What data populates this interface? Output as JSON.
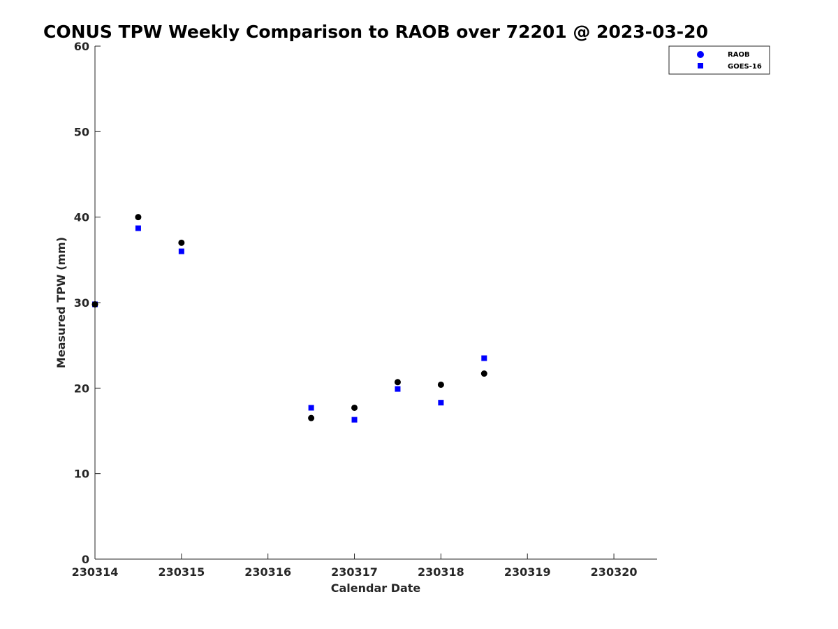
{
  "chart_data": {
    "type": "scatter",
    "title": "CONUS TPW Weekly Comparison to RAOB over 72201 @ 2023-03-20",
    "xlabel": "Calendar Date",
    "ylabel": "Measured TPW (mm)",
    "xlim": [
      230314,
      230320.5
    ],
    "ylim": [
      0,
      60
    ],
    "x_ticks": [
      230314,
      230315,
      230316,
      230317,
      230318,
      230319,
      230320
    ],
    "x_tick_labels": [
      "230314",
      "230315",
      "230316",
      "230317",
      "230318",
      "230319",
      "230320"
    ],
    "y_ticks": [
      0,
      10,
      20,
      30,
      40,
      50,
      60
    ],
    "y_tick_labels": [
      "0",
      "10",
      "20",
      "30",
      "40",
      "50",
      "60"
    ],
    "grid": false,
    "legend_position": "top-right",
    "legend": [
      {
        "name": "RAOB",
        "marker": "circle",
        "color": "#0000ff"
      },
      {
        "name": "GOES-16",
        "marker": "square",
        "color": "#0000ff"
      }
    ],
    "series": [
      {
        "name": "RAOB",
        "marker": "circle",
        "color": "#000000",
        "x": [
          230314.0,
          230314.5,
          230315.0,
          230316.5,
          230317.0,
          230317.5,
          230318.0,
          230318.5
        ],
        "y": [
          29.8,
          40.0,
          37.0,
          16.5,
          17.7,
          20.7,
          20.4,
          21.7
        ]
      },
      {
        "name": "GOES-16",
        "marker": "square",
        "color": "#0000ff",
        "x": [
          230314.0,
          230314.5,
          230315.0,
          230316.5,
          230317.0,
          230317.5,
          230318.0,
          230318.5
        ],
        "y": [
          29.8,
          38.7,
          36.0,
          17.7,
          16.3,
          19.9,
          18.3,
          23.5
        ]
      }
    ]
  }
}
